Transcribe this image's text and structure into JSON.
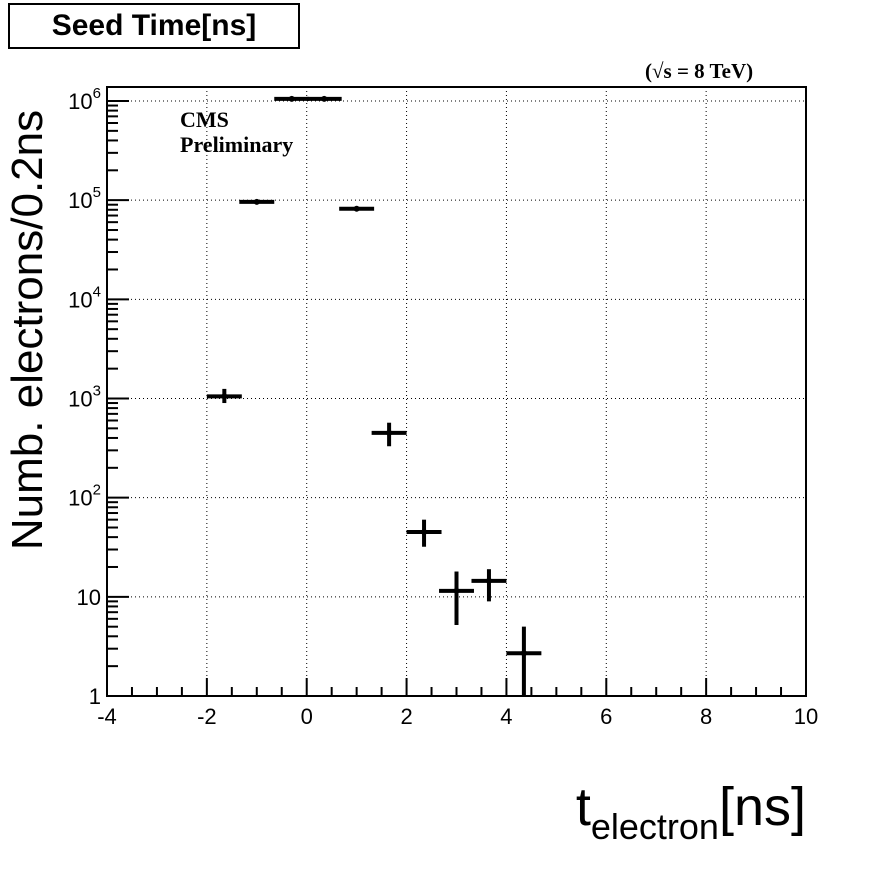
{
  "title_box": {
    "text": "Seed Time[ns]"
  },
  "energy_label": {
    "open": "(",
    "sqrt": "√s",
    "rest": " = 8 TeV)"
  },
  "watermark": {
    "line1": "CMS",
    "line2": "Preliminary"
  },
  "chart_data": {
    "type": "scatter",
    "title": "Seed Time[ns]",
    "xlabel": "t",
    "xlabel_sub": "electron",
    "xlabel_unit": "[ns]",
    "ylabel": "Numb. electrons/0.2ns",
    "xlim": [
      -4,
      10
    ],
    "ylim": [
      1,
      1500000
    ],
    "yscale": "log",
    "grid": true,
    "x_ticks": [
      -4,
      -2,
      0,
      2,
      4,
      6,
      8,
      10
    ],
    "y_ticks": [
      {
        "value": 1,
        "base": "1",
        "exp": ""
      },
      {
        "value": 10,
        "base": "10",
        "exp": ""
      },
      {
        "value": 100,
        "base": "10",
        "exp": "2"
      },
      {
        "value": 1000,
        "base": "10",
        "exp": "3"
      },
      {
        "value": 10000,
        "base": "10",
        "exp": "4"
      },
      {
        "value": 100000,
        "base": "10",
        "exp": "5"
      },
      {
        "value": 1000000,
        "base": "10",
        "exp": "6"
      }
    ],
    "series": [
      {
        "points": [
          {
            "x": -1.65,
            "xerr": 0.35,
            "y": 1050,
            "yerr_low": 150,
            "yerr_high": 200
          },
          {
            "x": -1.0,
            "xerr": 0.35,
            "y": 96000,
            "yerr_low": 3000,
            "yerr_high": 3000
          },
          {
            "x": -0.3,
            "xerr": 0.35,
            "y": 1050000,
            "yerr_low": 30000,
            "yerr_high": 30000
          },
          {
            "x": 0.35,
            "xerr": 0.35,
            "y": 1050000,
            "yerr_low": 30000,
            "yerr_high": 30000
          },
          {
            "x": 1.0,
            "xerr": 0.35,
            "y": 82000,
            "yerr_low": 3000,
            "yerr_high": 3000
          },
          {
            "x": 1.65,
            "xerr": 0.35,
            "y": 450,
            "yerr_low": 120,
            "yerr_high": 120
          },
          {
            "x": 2.35,
            "xerr": 0.35,
            "y": 45,
            "yerr_low": 13,
            "yerr_high": 15
          },
          {
            "x": 3.0,
            "xerr": 0.35,
            "y": 11.5,
            "yerr_low": 6.3,
            "yerr_high": 6.5
          },
          {
            "x": 3.65,
            "xerr": 0.35,
            "y": 14.5,
            "yerr_low": 5.5,
            "yerr_high": 4.5
          },
          {
            "x": 4.35,
            "xerr": 0.35,
            "y": 2.7,
            "yerr_low": 1.7,
            "yerr_high": 2.3
          }
        ]
      }
    ]
  }
}
